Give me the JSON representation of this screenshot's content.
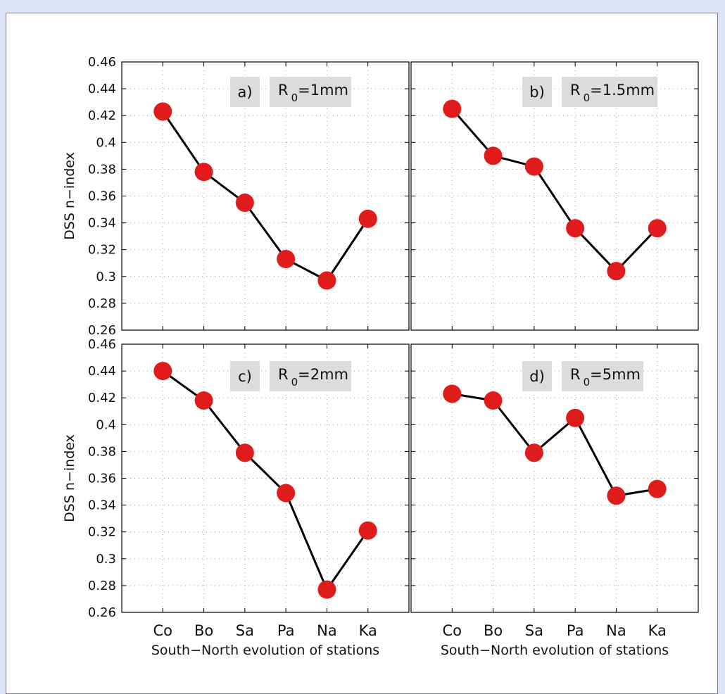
{
  "chart_data": [
    {
      "type": "line",
      "panel_label": "a)",
      "annotation": {
        "symbol": "R",
        "subscript": "0",
        "value": "=1mm"
      },
      "categories": [
        "Co",
        "Bo",
        "Sa",
        "Pa",
        "Na",
        "Ka"
      ],
      "values": [
        0.423,
        0.378,
        0.355,
        0.313,
        0.297,
        0.343
      ],
      "ylabel": "DSS n−index",
      "xlabel": "",
      "ylim": [
        0.26,
        0.46
      ],
      "yticks": [
        "0.26",
        "0.28",
        "0.3",
        "0.32",
        "0.34",
        "0.36",
        "0.38",
        "0.4",
        "0.42",
        "0.44",
        "0.46"
      ],
      "grid": true
    },
    {
      "type": "line",
      "panel_label": "b)",
      "annotation": {
        "symbol": "R",
        "subscript": "0",
        "value": "=1.5mm"
      },
      "categories": [
        "Co",
        "Bo",
        "Sa",
        "Pa",
        "Na",
        "Ka"
      ],
      "values": [
        0.425,
        0.39,
        0.382,
        0.336,
        0.304,
        0.336
      ],
      "ylabel": "",
      "xlabel": "",
      "ylim": [
        0.26,
        0.46
      ],
      "grid": true
    },
    {
      "type": "line",
      "panel_label": "c)",
      "annotation": {
        "symbol": "R",
        "subscript": "0",
        "value": "=2mm"
      },
      "categories": [
        "Co",
        "Bo",
        "Sa",
        "Pa",
        "Na",
        "Ka"
      ],
      "values": [
        0.44,
        0.418,
        0.379,
        0.349,
        0.277,
        0.321
      ],
      "ylabel": "DSS n−index",
      "xlabel": "South−North evolution of stations",
      "ylim": [
        0.26,
        0.46
      ],
      "yticks": [
        "0.26",
        "0.28",
        "0.3",
        "0.32",
        "0.34",
        "0.36",
        "0.38",
        "0.4",
        "0.42",
        "0.44",
        "0.46"
      ],
      "grid": true
    },
    {
      "type": "line",
      "panel_label": "d)",
      "annotation": {
        "symbol": "R",
        "subscript": "0",
        "value": "=5mm"
      },
      "categories": [
        "Co",
        "Bo",
        "Sa",
        "Pa",
        "Na",
        "Ka"
      ],
      "values": [
        0.423,
        0.418,
        0.379,
        0.405,
        0.347,
        0.352
      ],
      "ylabel": "",
      "xlabel": "South−North evolution of stations",
      "ylim": [
        0.26,
        0.46
      ],
      "grid": true
    }
  ],
  "style": {
    "marker_color": "#e01b1b",
    "line_color": "#000000",
    "annotation_bg": "#dcdcdc",
    "grid_color": "#9a9a9a",
    "page_bg": "#dde4f5"
  }
}
